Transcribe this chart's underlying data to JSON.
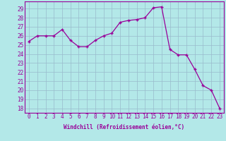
{
  "x": [
    0,
    1,
    2,
    3,
    4,
    5,
    6,
    7,
    8,
    9,
    10,
    11,
    12,
    13,
    14,
    15,
    16,
    17,
    18,
    19,
    20,
    21,
    22,
    23
  ],
  "y": [
    25.4,
    26.0,
    26.0,
    26.0,
    26.7,
    25.5,
    24.8,
    24.8,
    25.5,
    26.0,
    26.3,
    27.5,
    27.7,
    27.8,
    28.0,
    29.1,
    29.2,
    24.5,
    23.9,
    23.9,
    22.3,
    20.5,
    20.0,
    18.0
  ],
  "line_color": "#990099",
  "marker_color": "#990099",
  "bg_color": "#b3e8e8",
  "grid_color": "#99bbcc",
  "xlabel": "Windchill (Refroidissement éolien,°C)",
  "xlim": [
    -0.5,
    23.5
  ],
  "ylim": [
    17.5,
    29.8
  ],
  "yticks": [
    18,
    19,
    20,
    21,
    22,
    23,
    24,
    25,
    26,
    27,
    28,
    29
  ],
  "xticks": [
    0,
    1,
    2,
    3,
    4,
    5,
    6,
    7,
    8,
    9,
    10,
    11,
    12,
    13,
    14,
    15,
    16,
    17,
    18,
    19,
    20,
    21,
    22,
    23
  ],
  "axis_fontsize": 5.5,
  "tick_fontsize": 5.5
}
